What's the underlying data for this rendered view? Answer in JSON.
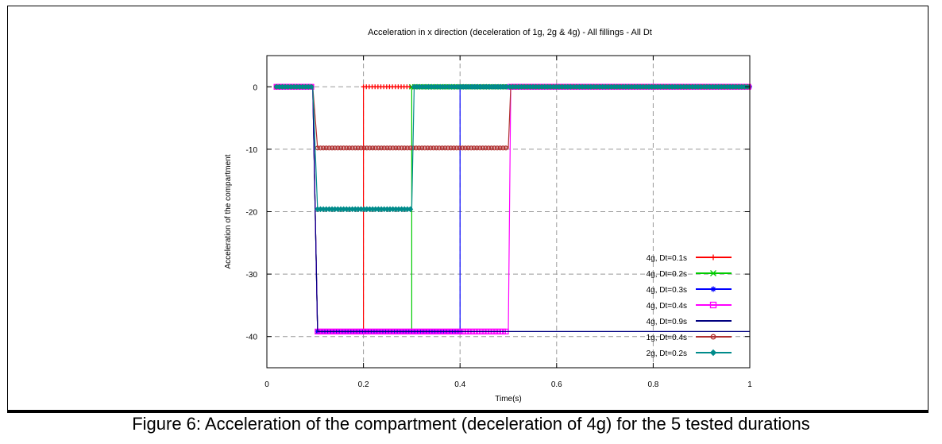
{
  "figure": {
    "caption": "Figure 6: Acceleration of the compartment (deceleration of 4g) for the 5 tested durations"
  },
  "chart_data": {
    "type": "line",
    "title": "Acceleration in x direction (deceleration of 1g, 2g & 4g) - All fillings - All Dt",
    "xlabel": "Time(s)",
    "ylabel": "Acceleration of the compartment",
    "xlim": [
      0,
      1
    ],
    "ylim": [
      -45,
      5
    ],
    "xticks": [
      0,
      0.2,
      0.4,
      0.6,
      0.8,
      1
    ],
    "xtick_labels": [
      "0",
      "0.2",
      "0.4",
      "0.6",
      "0.8",
      "1"
    ],
    "yticks": [
      0,
      -10,
      -20,
      -30,
      -40
    ],
    "ytick_labels": [
      "0",
      "-10",
      "-20",
      "-30",
      "-40"
    ],
    "grid": true,
    "grid_style": "dashed",
    "legend_position": "bottom-right",
    "series": [
      {
        "name": "4g, Dt=0.1s",
        "color": "#ff0000",
        "marker": "plus",
        "points": [
          [
            0.02,
            0
          ],
          [
            0.095,
            0
          ],
          [
            0.105,
            -39.2
          ],
          [
            0.2,
            -39.2
          ],
          [
            0.2,
            0
          ],
          [
            1,
            0
          ]
        ]
      },
      {
        "name": "4g, Dt=0.2s",
        "color": "#00cc00",
        "marker": "x",
        "points": [
          [
            0.02,
            0
          ],
          [
            0.095,
            0
          ],
          [
            0.105,
            -39.2
          ],
          [
            0.3,
            -39.2
          ],
          [
            0.3,
            0
          ],
          [
            1,
            0
          ]
        ]
      },
      {
        "name": "4g, Dt=0.3s",
        "color": "#0000ff",
        "marker": "star",
        "points": [
          [
            0.02,
            0
          ],
          [
            0.095,
            0
          ],
          [
            0.105,
            -39.2
          ],
          [
            0.4,
            -39.2
          ],
          [
            0.4,
            0
          ],
          [
            1,
            0
          ]
        ]
      },
      {
        "name": "4g, Dt=0.4s",
        "color": "#ff00ff",
        "marker": "square",
        "points": [
          [
            0.02,
            0
          ],
          [
            0.095,
            0
          ],
          [
            0.105,
            -39.2
          ],
          [
            0.5,
            -39.2
          ],
          [
            0.505,
            0
          ],
          [
            1,
            0
          ]
        ]
      },
      {
        "name": "4g, Dt=0.9s",
        "color": "#000080",
        "marker": "none",
        "points": [
          [
            0.02,
            0
          ],
          [
            0.095,
            0
          ],
          [
            0.105,
            -39.2
          ],
          [
            1,
            -39.2
          ]
        ]
      },
      {
        "name": "1g, Dt=0.4s",
        "color": "#b03030",
        "marker": "circle",
        "points": [
          [
            0.02,
            0
          ],
          [
            0.095,
            0
          ],
          [
            0.105,
            -9.8
          ],
          [
            0.5,
            -9.8
          ],
          [
            0.505,
            0
          ],
          [
            1,
            0
          ]
        ]
      },
      {
        "name": "2g, Dt=0.2s",
        "color": "#008b8b",
        "marker": "diamond",
        "points": [
          [
            0.02,
            0
          ],
          [
            0.095,
            0
          ],
          [
            0.105,
            -19.6
          ],
          [
            0.3,
            -19.6
          ],
          [
            0.305,
            0
          ],
          [
            1,
            0
          ]
        ]
      }
    ]
  }
}
